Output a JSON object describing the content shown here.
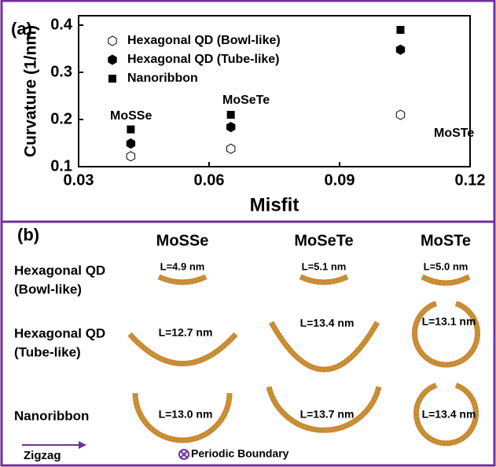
{
  "chart_data": {
    "type": "scatter",
    "panel_label": "(a)",
    "x_label": "Misfit",
    "y_label": "Curvature (1/nm)",
    "x": [
      0.042,
      0.065,
      0.104
    ],
    "series": [
      {
        "name": "Hexagonal QD (Bowl-like)",
        "marker": "hexagon-open",
        "color": "#000000",
        "values": [
          0.122,
          0.138,
          0.21
        ]
      },
      {
        "name": "Hexagonal QD (Tube-like)",
        "marker": "hexagon",
        "color": "#000000",
        "values": [
          0.149,
          0.184,
          0.348
        ]
      },
      {
        "name": "Nanoribbon",
        "marker": "square",
        "color": "#000000",
        "values": [
          0.179,
          0.21,
          0.39
        ]
      }
    ],
    "annotations": [
      "MoSSe",
      "MoSeTe",
      "MoSTe"
    ],
    "xlim": [
      0.03,
      0.12
    ],
    "xticks": [
      0.03,
      0.06,
      0.09,
      0.12
    ],
    "ylim": [
      0.1,
      0.42
    ],
    "yticks": [
      0.1,
      0.2,
      0.3,
      0.4
    ],
    "legend": "upper left"
  },
  "panel_b": {
    "panel_label": "(b)",
    "columns": [
      "MoSSe",
      "MoSeTe",
      "MoSTe"
    ],
    "rows": [
      {
        "label": [
          "Hexagonal QD",
          "(Bowl-like)"
        ],
        "lengths": [
          "L=4.9 nm",
          "L=5.1 nm",
          "L=5.0 nm"
        ]
      },
      {
        "label": [
          "Hexagonal QD",
          "(Tube-like)"
        ],
        "lengths": [
          "L=12.7 nm",
          "L=13.4 nm",
          "L=13.1 nm"
        ]
      },
      {
        "label": [
          "Nanoribbon"
        ],
        "lengths": [
          "L=13.0 nm",
          "L=13.7 nm",
          "L=13.4 nm"
        ]
      }
    ],
    "direction": "Zigzag",
    "boundary": "Periodic Boundary"
  }
}
